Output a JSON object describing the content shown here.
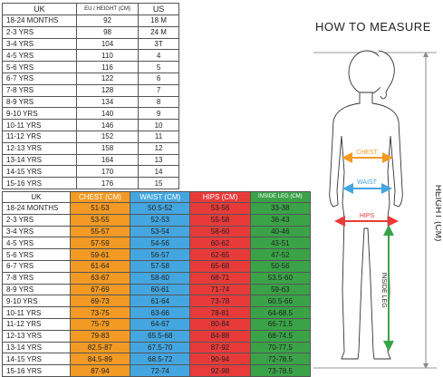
{
  "size_table": {
    "headers": [
      "UK",
      "EU / HEIGHT (CM)",
      "US"
    ],
    "rows": [
      [
        "18-24 MONTHS",
        "92",
        "18 M"
      ],
      [
        "2-3 YRS",
        "98",
        "24 M"
      ],
      [
        "3-4 YRS",
        "104",
        "3T"
      ],
      [
        "4-5 YRS",
        "110",
        "4"
      ],
      [
        "5-6 YRS",
        "116",
        "5"
      ],
      [
        "6-7 YRS",
        "122",
        "6"
      ],
      [
        "7-8 YRS",
        "128",
        "7"
      ],
      [
        "8-9 YRS",
        "134",
        "8"
      ],
      [
        "9-10 YRS",
        "140",
        "9"
      ],
      [
        "10-11 YRS",
        "146",
        "10"
      ],
      [
        "11-12 YRS",
        "152",
        "11"
      ],
      [
        "12-13 YRS",
        "158",
        "12"
      ],
      [
        "13-14 YRS",
        "164",
        "13"
      ],
      [
        "14-15 YRS",
        "170",
        "14"
      ],
      [
        "15-16 YRS",
        "176",
        "15"
      ]
    ]
  },
  "measure_table": {
    "headers": [
      "UK",
      "CHEST (CM)",
      "WAIST (CM)",
      "HIPS (CM)",
      "INSIDE LEG (CM)"
    ],
    "rows": [
      [
        "18-24 MONTHS",
        "51-53",
        "50.5-52",
        "53-56",
        "33-38"
      ],
      [
        "2-3 YRS",
        "53-55",
        "52-53",
        "55-58",
        "36-43"
      ],
      [
        "3-4 YRS",
        "55-57",
        "53-54",
        "58-60",
        "40-46"
      ],
      [
        "4-5 YRS",
        "57-59",
        "54-56",
        "60-62",
        "43-51"
      ],
      [
        "5-6 YRS",
        "59-61",
        "56-57",
        "62-65",
        "47-52"
      ],
      [
        "6-7 YRS",
        "61-64",
        "57-58",
        "65-68",
        "50-56"
      ],
      [
        "7-8 YRS",
        "63-67",
        "58-60",
        "68-71",
        "53.5-60"
      ],
      [
        "8-9 YRS",
        "67-69",
        "60-61",
        "71-74",
        "59-63"
      ],
      [
        "9-10 YRS",
        "69-73",
        "61-64",
        "73-78",
        "60.5-66"
      ],
      [
        "10-11 YRS",
        "73-75",
        "63-66",
        "78-81",
        "64-68.5"
      ],
      [
        "11-12 YRS",
        "75-79",
        "64-67",
        "80-84",
        "66-71.5"
      ],
      [
        "12-13 YRS",
        "79-83",
        "65.5-68",
        "84-88",
        "68-74.5"
      ],
      [
        "13-14 YRS",
        "82.5-87",
        "67.5-70",
        "87-92",
        "70-77.5"
      ],
      [
        "14-15 YRS",
        "84.5-89",
        "68.5-72",
        "90-94",
        "72-78.5"
      ],
      [
        "15-16 YRS",
        "87-94",
        "72-74",
        "92-98",
        "73-78.5"
      ]
    ]
  },
  "figure": {
    "title": "HOW TO MEASURE",
    "chest_label": "CHEST",
    "waist_label": "WAIST",
    "hips_label": "HIPS",
    "inside_leg_label": "INSIDE LEG",
    "height_label": "HEIGHT (CM)",
    "colors": {
      "chest": "#f39a24",
      "waist": "#43a6e0",
      "hips": "#e93a3a",
      "inside_leg": "#3aa348",
      "height": "#888888"
    }
  }
}
